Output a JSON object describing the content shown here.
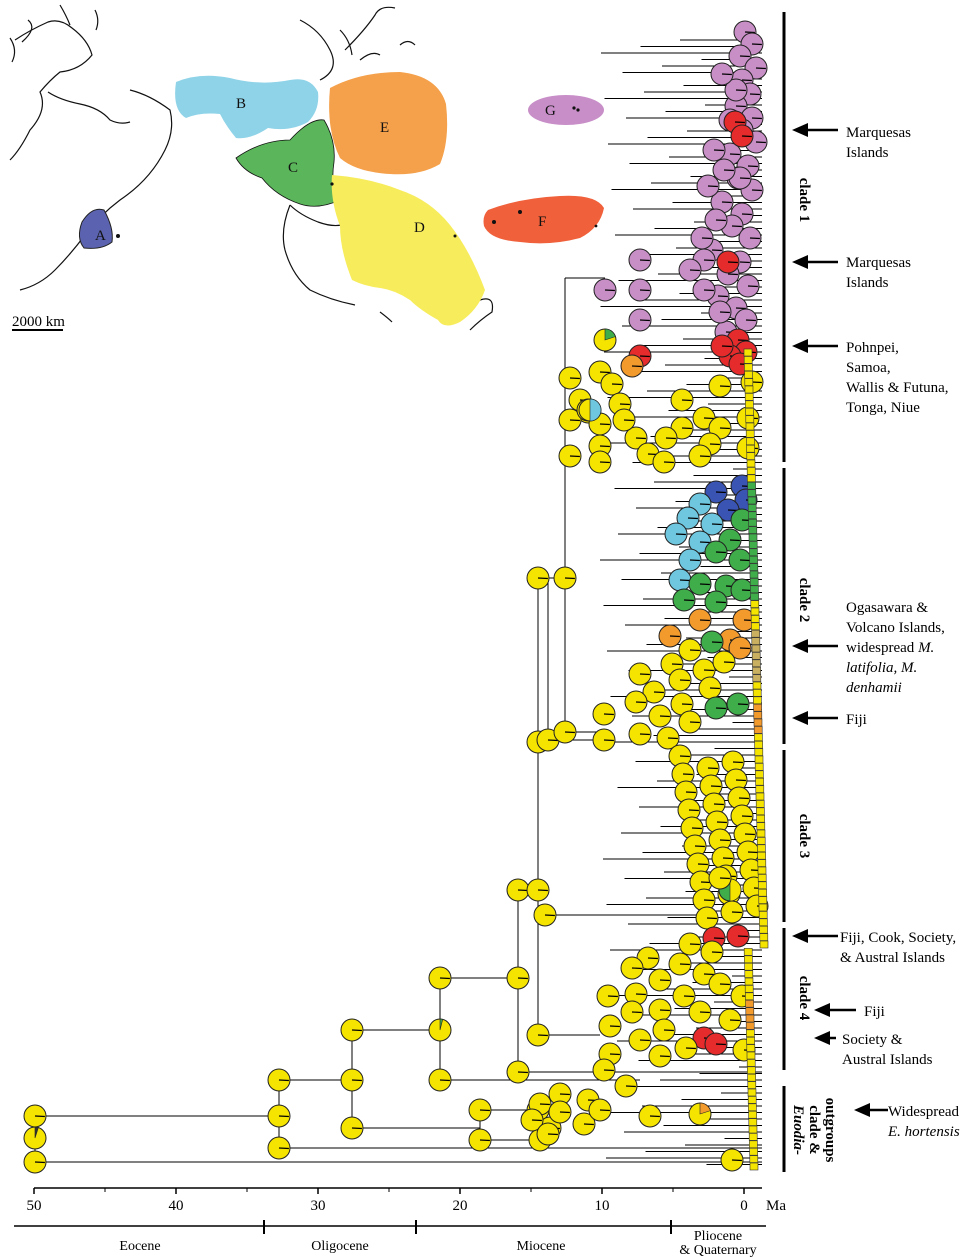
{
  "colors": {
    "A": "#5b63b0",
    "B": "#8fd3e8",
    "C": "#5bb55b",
    "D": "#f5e53a",
    "E": "#f5a04a",
    "F": "#f0603a",
    "G": "#c88ec8",
    "red": "#e52b2b",
    "blue": "#3a54b4",
    "cyan": "#6ec7df",
    "green": "#3fae4a",
    "orange": "#f39a2c",
    "purple": "#c78fc6",
    "yellow": "#f5e400"
  },
  "map": {
    "regions": [
      "A",
      "B",
      "C",
      "D",
      "E",
      "F",
      "G"
    ],
    "scale_label": "2000 km"
  },
  "clades": [
    "clade 1",
    "clade 2",
    "clade 3",
    "clade 4"
  ],
  "outgroup_label": [
    "Euodia-",
    "clade &",
    "outgroups"
  ],
  "annotations": [
    {
      "lines": [
        "Marquesas",
        "Islands"
      ]
    },
    {
      "lines": [
        "Marquesas",
        "Islands"
      ]
    },
    {
      "lines": [
        "Pohnpei,",
        "Samoa,",
        "Wallis & Futuna,",
        "Tonga, Niue"
      ]
    },
    {
      "lines": [
        "Ogasawara &",
        "Volcano Islands,",
        "widespread M.",
        "latifolia, M.",
        "denhamii"
      ]
    },
    {
      "lines": [
        "Fiji"
      ]
    },
    {
      "lines": [
        "Fiji, Cook, Society,",
        "& Austral Islands"
      ]
    },
    {
      "lines": [
        "Fiji"
      ]
    },
    {
      "lines": [
        "Society &",
        "Austral Islands"
      ]
    },
    {
      "lines": [
        "Widespread",
        "E. hortensis"
      ]
    }
  ],
  "axis": {
    "ticks": [
      "50",
      "40",
      "30",
      "20",
      "10",
      "0"
    ],
    "unit": "Ma",
    "epochs": [
      "Eocene",
      "Oligocene",
      "Miocene",
      "Pliocene",
      "& Quaternary"
    ]
  }
}
